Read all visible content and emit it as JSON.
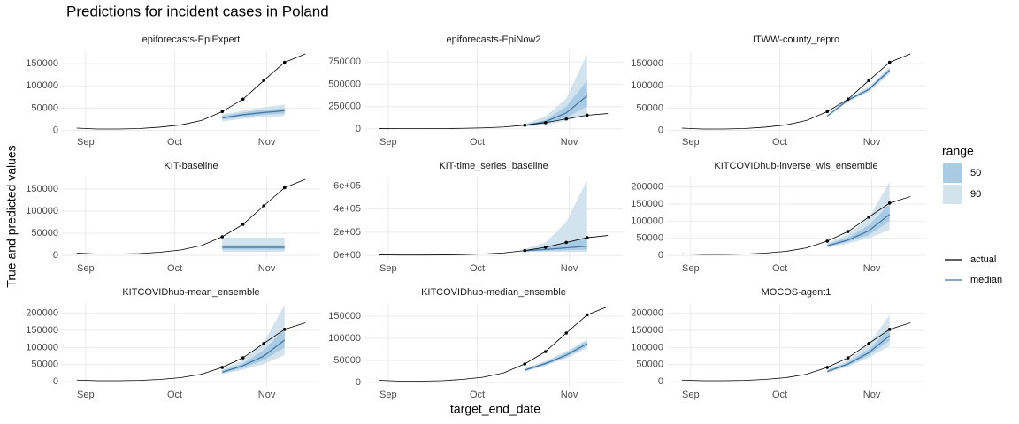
{
  "title": "Predictions for incident cases in Poland",
  "xlabel": "target_end_date",
  "ylabel": "True and predicted values",
  "legend": {
    "range_title": "range",
    "ranges": [
      {
        "label": "50",
        "color": "#a9cbe3"
      },
      {
        "label": "90",
        "color": "#d3e3ee"
      }
    ],
    "lines": [
      {
        "label": "actual",
        "color": "#000000"
      },
      {
        "label": "median",
        "color": "#3f73a3"
      }
    ]
  },
  "chart_data": [
    {
      "type": "line",
      "title": "epiforecasts-EpiExpert",
      "grid": true,
      "x": [
        242,
        249,
        256,
        263,
        270,
        277,
        284,
        291,
        298,
        305,
        312,
        319
      ],
      "xlim": [
        237,
        324
      ],
      "xticks": [
        {
          "value": 245,
          "label": "Sep"
        },
        {
          "value": 275,
          "label": "Oct"
        },
        {
          "value": 306,
          "label": "Nov"
        }
      ],
      "ylim": [
        -9000,
        180000
      ],
      "yticks": [
        0,
        50000,
        100000,
        150000
      ],
      "actual": [
        5000,
        3000,
        3000,
        4000,
        7000,
        12000,
        22000,
        42000,
        70000,
        112000,
        153000,
        172000
      ],
      "median": [
        null,
        null,
        null,
        null,
        null,
        null,
        null,
        28000,
        35000,
        40000,
        44000,
        null
      ],
      "lower50": [
        null,
        null,
        null,
        null,
        null,
        null,
        null,
        24000,
        30000,
        35000,
        38000,
        null
      ],
      "upper50": [
        null,
        null,
        null,
        null,
        null,
        null,
        null,
        32000,
        40000,
        46000,
        50000,
        null
      ],
      "lower90": [
        null,
        null,
        null,
        null,
        null,
        null,
        null,
        20000,
        26000,
        30000,
        32000,
        null
      ],
      "upper90": [
        null,
        null,
        null,
        null,
        null,
        null,
        null,
        36000,
        44000,
        52000,
        58000,
        null
      ]
    },
    {
      "type": "line",
      "title": "epiforecasts-EpiNow2",
      "grid": true,
      "x": [
        242,
        249,
        256,
        263,
        270,
        277,
        284,
        291,
        298,
        305,
        312,
        319
      ],
      "xlim": [
        237,
        324
      ],
      "xticks": [
        {
          "value": 245,
          "label": "Sep"
        },
        {
          "value": 275,
          "label": "Oct"
        },
        {
          "value": 306,
          "label": "Nov"
        }
      ],
      "ylim": [
        -60000,
        880000
      ],
      "yticks": [
        0,
        250000,
        500000,
        750000
      ],
      "actual": [
        5000,
        3000,
        3000,
        4000,
        7000,
        12000,
        22000,
        42000,
        70000,
        112000,
        153000,
        172000
      ],
      "median": [
        null,
        null,
        null,
        null,
        null,
        null,
        null,
        38000,
        80000,
        180000,
        370000,
        null
      ],
      "lower50": [
        null,
        null,
        null,
        null,
        null,
        null,
        null,
        30000,
        60000,
        130000,
        250000,
        null
      ],
      "upper50": [
        null,
        null,
        null,
        null,
        null,
        null,
        null,
        45000,
        100000,
        250000,
        540000,
        null
      ],
      "lower90": [
        null,
        null,
        null,
        null,
        null,
        null,
        null,
        25000,
        45000,
        90000,
        160000,
        null
      ],
      "upper90": [
        null,
        null,
        null,
        null,
        null,
        null,
        null,
        55000,
        140000,
        340000,
        840000,
        null
      ]
    },
    {
      "type": "line",
      "title": "ITWW-county_repro",
      "grid": true,
      "x": [
        242,
        249,
        256,
        263,
        270,
        277,
        284,
        291,
        298,
        305,
        312,
        319
      ],
      "xlim": [
        237,
        324
      ],
      "xticks": [
        {
          "value": 245,
          "label": "Sep"
        },
        {
          "value": 275,
          "label": "Oct"
        },
        {
          "value": 306,
          "label": "Nov"
        }
      ],
      "ylim": [
        -9000,
        180000
      ],
      "yticks": [
        0,
        50000,
        100000,
        150000
      ],
      "actual": [
        5000,
        3000,
        3000,
        4000,
        7000,
        12000,
        22000,
        42000,
        70000,
        112000,
        153000,
        172000
      ],
      "median": [
        null,
        null,
        null,
        null,
        null,
        null,
        null,
        32000,
        68000,
        92000,
        135000,
        null
      ],
      "lower50": [
        null,
        null,
        null,
        null,
        null,
        null,
        null,
        31000,
        66000,
        89000,
        131000,
        null
      ],
      "upper50": [
        null,
        null,
        null,
        null,
        null,
        null,
        null,
        33000,
        70000,
        95000,
        139000,
        null
      ],
      "lower90": [
        null,
        null,
        null,
        null,
        null,
        null,
        null,
        30000,
        64000,
        86000,
        127000,
        null
      ],
      "upper90": [
        null,
        null,
        null,
        null,
        null,
        null,
        null,
        34000,
        72000,
        98000,
        143000,
        null
      ]
    },
    {
      "type": "line",
      "title": "KIT-baseline",
      "grid": true,
      "x": [
        242,
        249,
        256,
        263,
        270,
        277,
        284,
        291,
        298,
        305,
        312,
        319
      ],
      "xlim": [
        237,
        324
      ],
      "xticks": [
        {
          "value": 245,
          "label": "Sep"
        },
        {
          "value": 275,
          "label": "Oct"
        },
        {
          "value": 306,
          "label": "Nov"
        }
      ],
      "ylim": [
        -12000,
        178000
      ],
      "yticks": [
        0,
        50000,
        100000,
        150000
      ],
      "actual": [
        5000,
        3000,
        3000,
        4000,
        7000,
        12000,
        22000,
        42000,
        70000,
        112000,
        153000,
        172000
      ],
      "median": [
        null,
        null,
        null,
        null,
        null,
        null,
        null,
        18000,
        18000,
        18000,
        18000,
        null
      ],
      "lower50": [
        null,
        null,
        null,
        null,
        null,
        null,
        null,
        13000,
        13000,
        13000,
        13000,
        null
      ],
      "upper50": [
        null,
        null,
        null,
        null,
        null,
        null,
        null,
        23000,
        23000,
        23000,
        23000,
        null
      ],
      "lower90": [
        null,
        null,
        null,
        null,
        null,
        null,
        null,
        8000,
        8000,
        8000,
        8000,
        null
      ],
      "upper90": [
        null,
        null,
        null,
        null,
        null,
        null,
        null,
        40000,
        40000,
        40000,
        40000,
        null
      ]
    },
    {
      "type": "line",
      "title": "KIT-time_series_baseline",
      "grid": true,
      "x": [
        242,
        249,
        256,
        263,
        270,
        277,
        284,
        291,
        298,
        305,
        312,
        319
      ],
      "xlim": [
        237,
        324
      ],
      "xticks": [
        {
          "value": 245,
          "label": "Sep"
        },
        {
          "value": 275,
          "label": "Oct"
        },
        {
          "value": 306,
          "label": "Nov"
        }
      ],
      "ylim": [
        -45000,
        680000
      ],
      "yticks": [
        {
          "value": 0,
          "label": "0e+00"
        },
        {
          "value": 200000,
          "label": "2e+05"
        },
        {
          "value": 400000,
          "label": "4e+05"
        },
        {
          "value": 600000,
          "label": "6e+05"
        }
      ],
      "actual": [
        5000,
        3000,
        3000,
        4000,
        7000,
        12000,
        22000,
        42000,
        70000,
        112000,
        153000,
        172000
      ],
      "median": [
        null,
        null,
        null,
        null,
        null,
        null,
        null,
        40000,
        52000,
        65000,
        80000,
        null
      ],
      "lower50": [
        null,
        null,
        null,
        null,
        null,
        null,
        null,
        35000,
        40000,
        45000,
        50000,
        null
      ],
      "upper50": [
        null,
        null,
        null,
        null,
        null,
        null,
        null,
        48000,
        75000,
        110000,
        150000,
        null
      ],
      "lower90": [
        null,
        null,
        null,
        null,
        null,
        null,
        null,
        30000,
        30000,
        30000,
        30000,
        null
      ],
      "upper90": [
        null,
        null,
        null,
        null,
        null,
        null,
        null,
        55000,
        110000,
        290000,
        650000,
        null
      ]
    },
    {
      "type": "line",
      "title": "KITCOVIDhub-inverse_wis_ensemble",
      "grid": true,
      "x": [
        242,
        249,
        256,
        263,
        270,
        277,
        284,
        291,
        298,
        305,
        312,
        319
      ],
      "xlim": [
        237,
        324
      ],
      "xticks": [
        {
          "value": 245,
          "label": "Sep"
        },
        {
          "value": 275,
          "label": "Oct"
        },
        {
          "value": 306,
          "label": "Nov"
        }
      ],
      "ylim": [
        -15000,
        230000
      ],
      "yticks": [
        0,
        50000,
        100000,
        150000,
        200000
      ],
      "actual": [
        5000,
        3000,
        3000,
        4000,
        7000,
        12000,
        22000,
        42000,
        70000,
        112000,
        153000,
        172000
      ],
      "median": [
        null,
        null,
        null,
        null,
        null,
        null,
        null,
        28000,
        45000,
        72000,
        120000,
        null
      ],
      "lower50": [
        null,
        null,
        null,
        null,
        null,
        null,
        null,
        25000,
        40000,
        60000,
        100000,
        null
      ],
      "upper50": [
        null,
        null,
        null,
        null,
        null,
        null,
        null,
        32000,
        53000,
        88000,
        150000,
        null
      ],
      "lower90": [
        null,
        null,
        null,
        null,
        null,
        null,
        null,
        22000,
        35000,
        50000,
        75000,
        null
      ],
      "upper90": [
        null,
        null,
        null,
        null,
        null,
        null,
        null,
        36000,
        62000,
        110000,
        215000,
        null
      ]
    },
    {
      "type": "line",
      "title": "KITCOVIDhub-mean_ensemble",
      "grid": true,
      "x": [
        242,
        249,
        256,
        263,
        270,
        277,
        284,
        291,
        298,
        305,
        312,
        319
      ],
      "xlim": [
        237,
        324
      ],
      "xticks": [
        {
          "value": 245,
          "label": "Sep"
        },
        {
          "value": 275,
          "label": "Oct"
        },
        {
          "value": 306,
          "label": "Nov"
        }
      ],
      "ylim": [
        -15000,
        230000
      ],
      "yticks": [
        0,
        50000,
        100000,
        150000,
        200000
      ],
      "actual": [
        5000,
        3000,
        3000,
        4000,
        7000,
        12000,
        22000,
        42000,
        70000,
        112000,
        153000,
        172000
      ],
      "median": [
        null,
        null,
        null,
        null,
        null,
        null,
        null,
        28000,
        47000,
        75000,
        122000,
        null
      ],
      "lower50": [
        null,
        null,
        null,
        null,
        null,
        null,
        null,
        25000,
        41000,
        63000,
        100000,
        null
      ],
      "upper50": [
        null,
        null,
        null,
        null,
        null,
        null,
        null,
        32000,
        54000,
        92000,
        155000,
        null
      ],
      "lower90": [
        null,
        null,
        null,
        null,
        null,
        null,
        null,
        22000,
        35000,
        52000,
        78000,
        null
      ],
      "upper90": [
        null,
        null,
        null,
        null,
        null,
        null,
        null,
        36000,
        64000,
        115000,
        225000,
        null
      ]
    },
    {
      "type": "line",
      "title": "KITCOVIDhub-median_ensemble",
      "grid": true,
      "x": [
        242,
        249,
        256,
        263,
        270,
        277,
        284,
        291,
        298,
        305,
        312,
        319
      ],
      "xlim": [
        237,
        324
      ],
      "xticks": [
        {
          "value": 245,
          "label": "Sep"
        },
        {
          "value": 275,
          "label": "Oct"
        },
        {
          "value": 306,
          "label": "Nov"
        }
      ],
      "ylim": [
        -10000,
        180000
      ],
      "yticks": [
        0,
        50000,
        100000,
        150000
      ],
      "actual": [
        5000,
        3000,
        3000,
        4000,
        7000,
        12000,
        22000,
        42000,
        70000,
        112000,
        153000,
        172000
      ],
      "median": [
        null,
        null,
        null,
        null,
        null,
        null,
        null,
        28000,
        43000,
        62000,
        88000,
        null
      ],
      "lower50": [
        null,
        null,
        null,
        null,
        null,
        null,
        null,
        26000,
        40000,
        58000,
        82000,
        null
      ],
      "upper50": [
        null,
        null,
        null,
        null,
        null,
        null,
        null,
        30000,
        46000,
        67000,
        94000,
        null
      ],
      "lower90": [
        null,
        null,
        null,
        null,
        null,
        null,
        null,
        24000,
        38000,
        55000,
        78000,
        null
      ],
      "upper90": [
        null,
        null,
        null,
        null,
        null,
        null,
        null,
        32000,
        49000,
        71000,
        98000,
        null
      ]
    },
    {
      "type": "line",
      "title": "MOCOS-agent1",
      "grid": true,
      "x": [
        242,
        249,
        256,
        263,
        270,
        277,
        284,
        291,
        298,
        305,
        312,
        319
      ],
      "xlim": [
        237,
        324
      ],
      "xticks": [
        {
          "value": 245,
          "label": "Sep"
        },
        {
          "value": 275,
          "label": "Oct"
        },
        {
          "value": 306,
          "label": "Nov"
        }
      ],
      "ylim": [
        -15000,
        230000
      ],
      "yticks": [
        0,
        50000,
        100000,
        150000,
        200000
      ],
      "actual": [
        5000,
        3000,
        3000,
        4000,
        7000,
        12000,
        22000,
        42000,
        70000,
        112000,
        153000,
        172000
      ],
      "median": [
        null,
        null,
        null,
        null,
        null,
        null,
        null,
        30000,
        52000,
        85000,
        135000,
        null
      ],
      "lower50": [
        null,
        null,
        null,
        null,
        null,
        null,
        null,
        28000,
        48000,
        78000,
        120000,
        null
      ],
      "upper50": [
        null,
        null,
        null,
        null,
        null,
        null,
        null,
        33000,
        57000,
        95000,
        155000,
        null
      ],
      "lower90": [
        null,
        null,
        null,
        null,
        null,
        null,
        null,
        26000,
        44000,
        70000,
        105000,
        null
      ],
      "upper90": [
        null,
        null,
        null,
        null,
        null,
        null,
        null,
        36000,
        63000,
        110000,
        195000,
        null
      ]
    }
  ]
}
